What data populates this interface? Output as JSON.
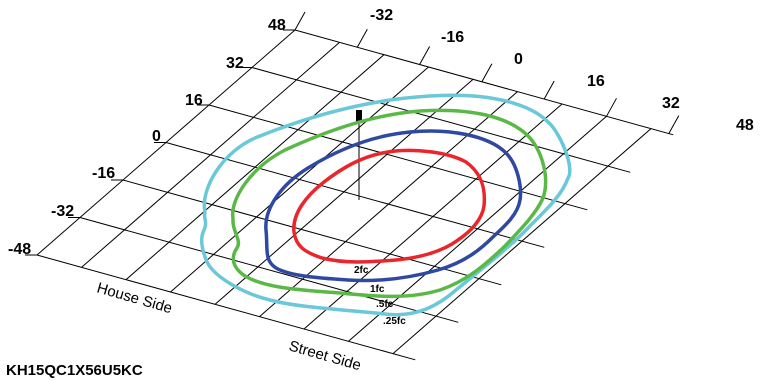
{
  "axis_left_ticks": [
    "48",
    "32",
    "16",
    "0",
    "-16",
    "-32",
    "-48"
  ],
  "axis_top_ticks": [
    "-32",
    "-16",
    "0",
    "16",
    "32",
    "48"
  ],
  "house_side_label": "House Side",
  "street_side_label": "Street Side",
  "model_number": "KH15QC1X56U5KC",
  "contours": [
    {
      "label": "2fc",
      "color": "#e8262b"
    },
    {
      "label": "1fc",
      "color": "#2f49a3"
    },
    {
      "label": ".5fc",
      "color": "#5ab946"
    },
    {
      "label": ".25fc",
      "color": "#6ac8d9"
    }
  ]
}
